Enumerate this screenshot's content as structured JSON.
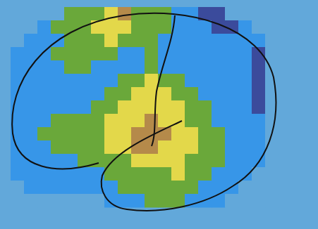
{
  "chart_data": {
    "type": "heatmap",
    "tick_labels": false,
    "colors": [
      "#62a8da",
      "#3796e8",
      "#3b4b9c",
      "#6aa83a",
      "#e3d84a",
      "#b58a4a"
    ],
    "cells": [
      [
        0,
        0,
        0,
        0,
        3,
        3,
        3,
        4,
        5,
        3,
        3,
        3,
        1,
        1,
        2,
        2,
        0,
        0,
        0,
        0
      ],
      [
        0,
        0,
        1,
        3,
        3,
        3,
        4,
        4,
        4,
        3,
        3,
        3,
        1,
        1,
        1,
        2,
        2,
        1,
        0,
        0
      ],
      [
        0,
        1,
        1,
        1,
        3,
        3,
        3,
        4,
        3,
        3,
        3,
        1,
        1,
        1,
        1,
        1,
        1,
        1,
        1,
        0
      ],
      [
        1,
        1,
        1,
        3,
        3,
        3,
        3,
        3,
        1,
        1,
        3,
        1,
        1,
        1,
        1,
        1,
        1,
        1,
        2,
        0
      ],
      [
        1,
        1,
        1,
        1,
        3,
        3,
        1,
        1,
        1,
        1,
        3,
        1,
        1,
        1,
        1,
        1,
        1,
        1,
        2,
        0
      ],
      [
        1,
        1,
        1,
        1,
        1,
        1,
        1,
        1,
        3,
        3,
        4,
        3,
        3,
        1,
        1,
        1,
        1,
        1,
        2,
        0
      ],
      [
        1,
        1,
        1,
        1,
        1,
        1,
        1,
        3,
        3,
        4,
        4,
        4,
        3,
        3,
        1,
        1,
        1,
        1,
        2,
        0
      ],
      [
        1,
        1,
        1,
        1,
        1,
        1,
        3,
        3,
        4,
        4,
        4,
        4,
        4,
        3,
        3,
        1,
        1,
        1,
        2,
        0
      ],
      [
        1,
        1,
        1,
        3,
        3,
        3,
        3,
        4,
        4,
        4,
        5,
        4,
        4,
        3,
        3,
        1,
        1,
        1,
        1,
        0
      ],
      [
        1,
        1,
        3,
        3,
        3,
        3,
        3,
        4,
        4,
        5,
        5,
        5,
        4,
        4,
        3,
        3,
        1,
        1,
        1,
        0
      ],
      [
        1,
        1,
        1,
        3,
        3,
        3,
        3,
        4,
        4,
        5,
        5,
        4,
        4,
        4,
        3,
        3,
        1,
        1,
        1,
        0
      ],
      [
        1,
        1,
        1,
        1,
        1,
        3,
        3,
        3,
        3,
        4,
        4,
        4,
        4,
        3,
        3,
        3,
        1,
        1,
        1,
        0
      ],
      [
        1,
        1,
        1,
        1,
        1,
        1,
        1,
        3,
        3,
        3,
        3,
        3,
        4,
        3,
        3,
        1,
        1,
        1,
        0,
        0
      ],
      [
        0,
        1,
        1,
        1,
        1,
        1,
        1,
        1,
        3,
        3,
        3,
        3,
        3,
        3,
        1,
        1,
        1,
        0,
        0,
        0
      ],
      [
        0,
        0,
        0,
        0,
        0,
        0,
        0,
        1,
        1,
        1,
        3,
        3,
        3,
        1,
        1,
        1,
        0,
        0,
        0,
        0
      ]
    ]
  }
}
